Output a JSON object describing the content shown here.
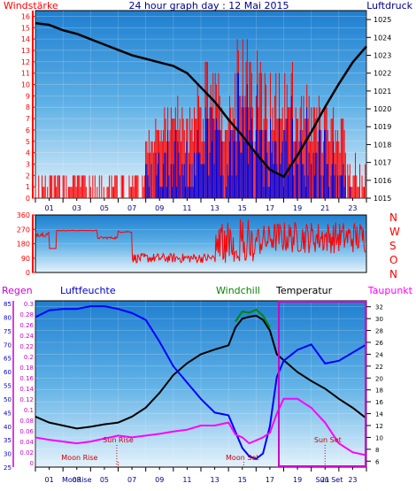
{
  "chart_data": [
    {
      "type": "line",
      "title": "24 hour graph day : 12 Mai 2015",
      "left_label": "Windstärke",
      "right_label": "Luftdruck",
      "x_ticks": [
        "01",
        "03",
        "05",
        "07",
        "09",
        "11",
        "13",
        "15",
        "17",
        "19",
        "21",
        "23"
      ],
      "left_ticks": [
        "0",
        "1",
        "2",
        "3",
        "4",
        "5",
        "6",
        "7",
        "8",
        "9",
        "10",
        "11",
        "12",
        "13",
        "14",
        "15",
        "16"
      ],
      "right_ticks": [
        "1015",
        "1016",
        "1017",
        "1018",
        "1019",
        "1020",
        "1021",
        "1022",
        "1023",
        "1024",
        "1025"
      ],
      "ylim_left": [
        0,
        16.5
      ],
      "ylim_right": [
        1015,
        1025.5
      ],
      "series": [
        {
          "name": "Windstärke",
          "color": "#ff0000",
          "style": "bars"
        },
        {
          "name": "Luftdruck",
          "color": "#000000",
          "style": "line",
          "x": [
            0,
            1,
            2,
            3,
            4,
            5,
            6,
            7,
            8,
            9,
            10,
            11,
            12,
            13,
            14,
            15,
            16,
            17,
            18,
            19,
            20,
            21,
            22,
            23,
            24
          ],
          "y": [
            1024.8,
            1024.7,
            1024.4,
            1024.2,
            1023.9,
            1023.6,
            1023.3,
            1023.0,
            1022.8,
            1022.6,
            1022.4,
            1022.0,
            1021.2,
            1020.4,
            1019.4,
            1018.5,
            1017.5,
            1016.6,
            1016.2,
            1017.4,
            1018.7,
            1020.1,
            1021.4,
            1022.6,
            1023.5
          ]
        }
      ]
    },
    {
      "type": "line",
      "compass_labels": [
        "N",
        "W",
        "S",
        "O",
        "N"
      ],
      "left_ticks": [
        "0",
        "90",
        "180",
        "270",
        "360"
      ],
      "ylim": [
        0,
        360
      ],
      "series": [
        {
          "name": "Windrichtung",
          "color": "#ff0000"
        }
      ]
    },
    {
      "type": "line",
      "labels": {
        "regen": "Regen",
        "luftfeuchte": "Luftfeuchte",
        "windchill": "Windchill",
        "temperatur": "Temperatur",
        "taupunkt": "Taupunkt"
      },
      "x_ticks": [
        "01",
        "03",
        "05",
        "07",
        "09",
        "11",
        "13",
        "15",
        "17",
        "19",
        "21",
        "23"
      ],
      "regen_ticks": [
        "0",
        "0.02",
        "0.04",
        "0.06",
        "0.08",
        "0.1",
        "0.12",
        "0.14",
        "0.16",
        "0.18",
        "0.2",
        "0.22",
        "0.24",
        "0.26",
        "0.28",
        "0.3"
      ],
      "humidity_ticks": [
        "25",
        "30",
        "35",
        "40",
        "45",
        "50",
        "55",
        "60",
        "65",
        "70",
        "75",
        "80",
        "85"
      ],
      "temp_ticks": [
        "6",
        "8",
        "10",
        "12",
        "14",
        "16",
        "18",
        "20",
        "22",
        "24",
        "26",
        "28",
        "30",
        "32"
      ],
      "ylim_humidity": [
        25,
        86
      ],
      "ylim_temp": [
        5,
        33
      ],
      "annotations": [
        {
          "text": "Moon Rise",
          "x": 3.2,
          "line_x": 6.0
        },
        {
          "text": "Sun Rise",
          "x": 6.0,
          "line_x": 5.9
        },
        {
          "text": "Moon Set",
          "x": 15.0,
          "line_x": 15.1
        },
        {
          "text": "Sun Set",
          "x": 21.2,
          "line_x": 21.0
        }
      ],
      "bottom_tick_overlays": [
        {
          "text": "MooRise",
          "x": 3.0
        },
        {
          "text": "Sun Set",
          "x": 21.3
        }
      ],
      "series": [
        {
          "name": "Temperatur",
          "color": "#000000",
          "x": [
            0,
            1,
            2,
            3,
            4,
            5,
            6,
            7,
            8,
            9,
            10,
            11,
            12,
            13,
            14,
            14.5,
            15,
            15.5,
            16,
            16.5,
            17,
            17.5,
            18,
            19,
            20,
            21,
            22,
            23,
            24
          ],
          "y": [
            13.5,
            12.5,
            12.0,
            11.5,
            11.8,
            12.2,
            12.5,
            13.5,
            15.0,
            17.5,
            20.5,
            22.5,
            24.0,
            24.8,
            25.5,
            28.5,
            30.0,
            30.3,
            30.5,
            29.8,
            28.0,
            24.0,
            23.0,
            21.0,
            19.5,
            18.2,
            16.5,
            15.0,
            13.2
          ]
        },
        {
          "name": "Windchill",
          "color": "#008800",
          "x": [
            14.5,
            15,
            15.5,
            16,
            16.5,
            17
          ],
          "y": [
            29.5,
            31.2,
            31.0,
            31.5,
            30.5,
            28.5
          ]
        },
        {
          "name": "Luftfeuchte",
          "color": "#0000ff",
          "x": [
            0,
            1,
            2,
            3,
            4,
            5,
            6,
            7,
            8,
            9,
            10,
            11,
            12,
            13,
            14,
            14.5,
            15,
            15.5,
            16,
            16.5,
            17,
            17.5,
            18,
            19,
            20,
            21,
            22,
            23,
            24
          ],
          "y": [
            80,
            82.5,
            83,
            83,
            84,
            84,
            83,
            81.5,
            79,
            71,
            62,
            56,
            50,
            45,
            44,
            38,
            32,
            29,
            28,
            30,
            40,
            58,
            64,
            68,
            70,
            63,
            64,
            67,
            70
          ]
        },
        {
          "name": "Taupunkt",
          "color": "#ff00ff",
          "x": [
            0,
            1,
            2,
            3,
            4,
            5,
            6,
            7,
            8,
            9,
            10,
            11,
            12,
            13,
            14,
            14.5,
            15,
            15.5,
            16,
            16.5,
            17,
            17.5,
            18,
            19,
            20,
            21,
            22,
            23,
            24
          ],
          "y": [
            10.0,
            9.6,
            9.3,
            9.0,
            9.3,
            9.8,
            10.3,
            10.0,
            10.3,
            10.6,
            11.0,
            11.3,
            12.0,
            12.0,
            12.5,
            10.5,
            10.0,
            9.0,
            9.5,
            10.0,
            10.8,
            14.0,
            16.5,
            16.5,
            15.0,
            12.5,
            9.0,
            7.5,
            7.0
          ]
        }
      ]
    }
  ]
}
